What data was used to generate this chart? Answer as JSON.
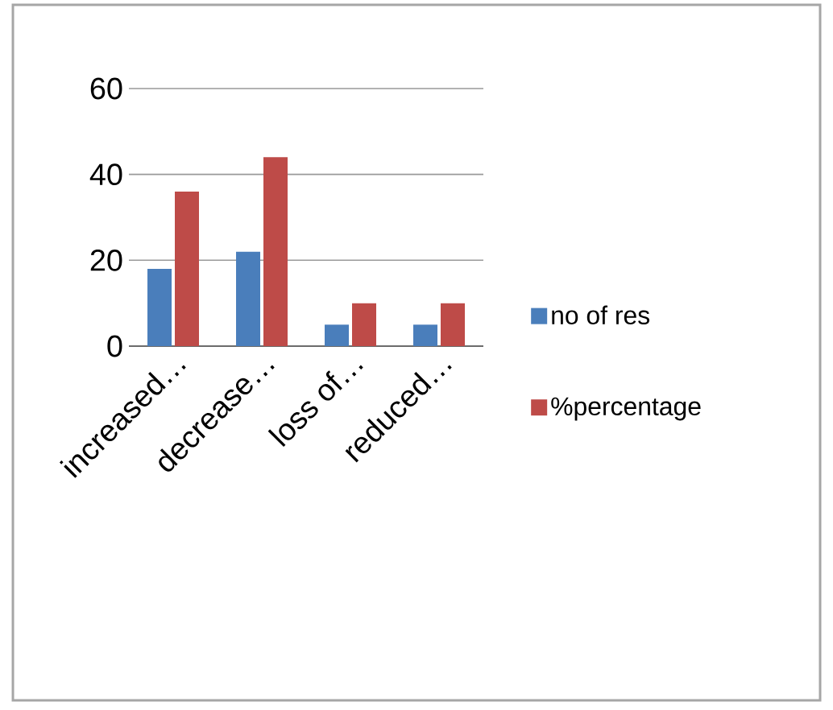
{
  "chart_data": {
    "type": "bar",
    "categories": [
      "increased…",
      "decrease…",
      "loss of…",
      "reduced…"
    ],
    "series": [
      {
        "name": "no of res",
        "color": "#4a7ebb",
        "values": [
          18,
          22,
          5,
          5
        ]
      },
      {
        "name": "%percentage",
        "color": "#be4b48",
        "values": [
          36,
          44,
          10,
          10
        ]
      }
    ],
    "ylim": [
      0,
      60
    ],
    "yticks": [
      0,
      20,
      40,
      60
    ],
    "grid": "y",
    "legend": "right"
  }
}
